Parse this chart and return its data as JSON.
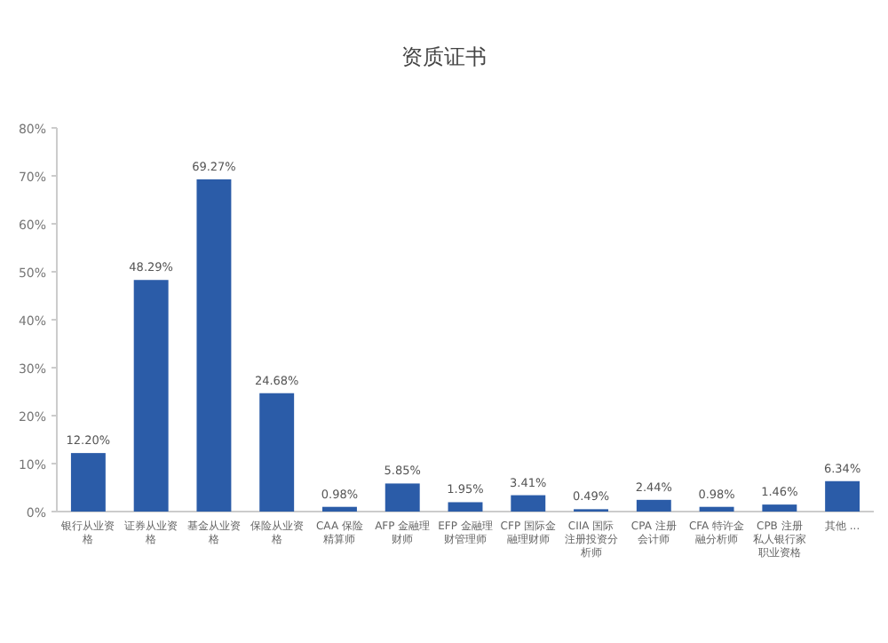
{
  "chart_data": {
    "type": "bar",
    "title": "资质证书",
    "categories": [
      "银行从业资格",
      "证券从业资格",
      "基金从业资格",
      "保险从业资格",
      "CAA 保险精算师",
      "AFP 金融理财师",
      "EFP 金融理财管理师",
      "CFP 国际金融理财师",
      "CIIA 国际注册投资分析师",
      "CPA 注册会计师",
      "CFA 特许金融分析师",
      "CPB 注册私人银行家职业资格",
      "其他 ..."
    ],
    "values": [
      12.2,
      48.29,
      69.27,
      24.68,
      0.98,
      5.85,
      1.95,
      3.41,
      0.49,
      2.44,
      0.98,
      1.46,
      6.34
    ],
    "value_labels": [
      "12.20%",
      "48.29%",
      "69.27%",
      "24.68%",
      "0.98%",
      "5.85%",
      "1.95%",
      "3.41%",
      "0.49%",
      "2.44%",
      "0.98%",
      "1.46%",
      "6.34%"
    ],
    "color": "#2b5ca8",
    "ylim": [
      0,
      80
    ],
    "yticks": [
      {
        "value": 0,
        "label": "0%"
      },
      {
        "value": 10,
        "label": "10%"
      },
      {
        "value": 20,
        "label": "20%"
      },
      {
        "value": 30,
        "label": "30%"
      },
      {
        "value": 40,
        "label": "40%"
      },
      {
        "value": 50,
        "label": "50%"
      },
      {
        "value": 60,
        "label": "60%"
      },
      {
        "value": 70,
        "label": "70%"
      },
      {
        "value": 80,
        "label": "80%"
      }
    ],
    "grid": false
  }
}
